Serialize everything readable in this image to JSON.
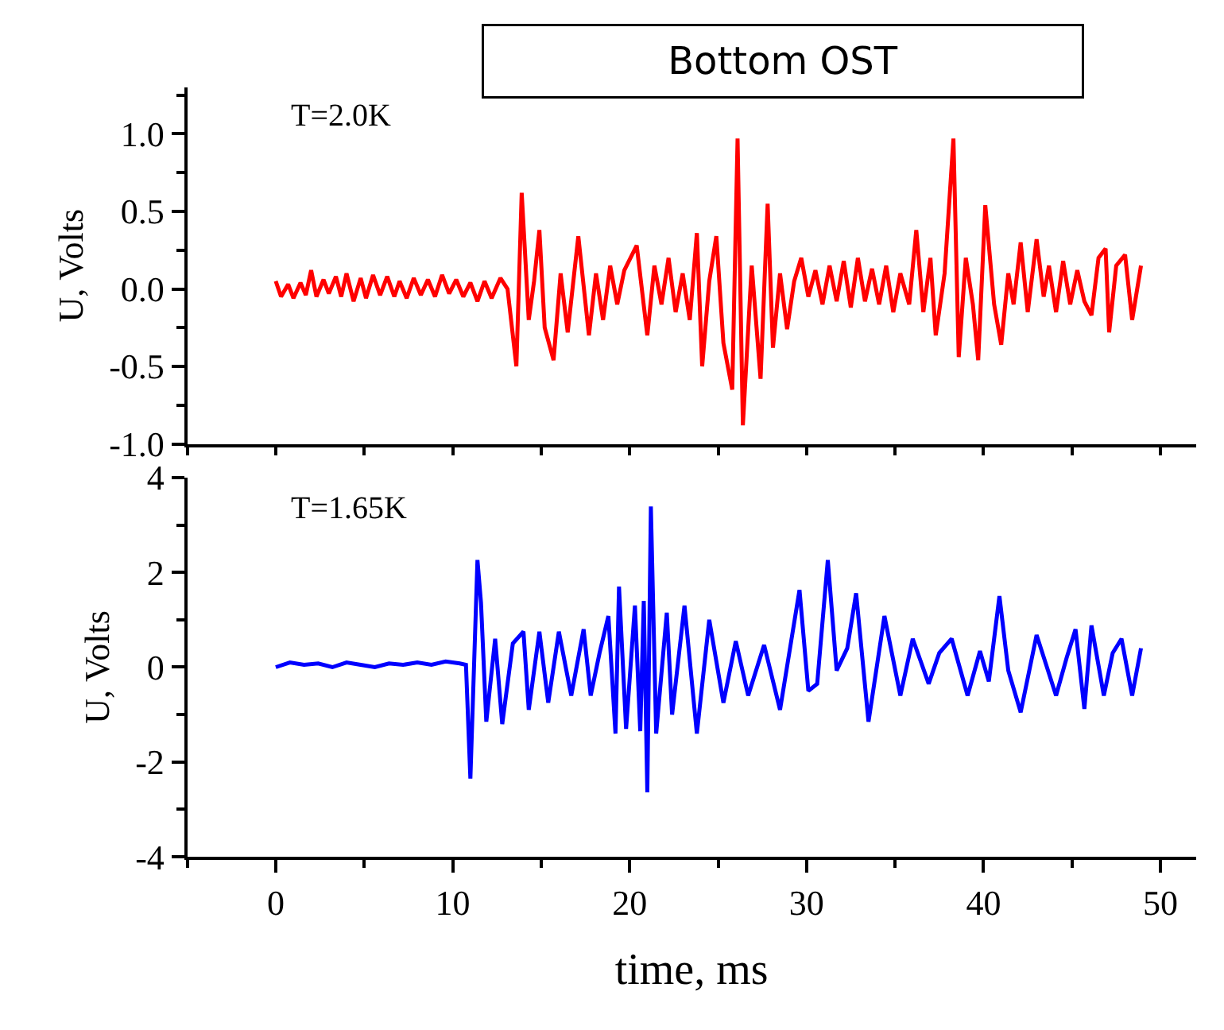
{
  "chart_data": [
    {
      "type": "line",
      "title": "Bottom OST",
      "ylabel": "U, Volts",
      "annotations": [
        "T=2.0K"
      ],
      "xlim": [
        -5,
        52
      ],
      "xticks": [
        {
          "value": 0,
          "label": null
        },
        {
          "value": 10,
          "label": null
        },
        {
          "value": 20,
          "label": null
        },
        {
          "value": 30,
          "label": null
        },
        {
          "value": 40,
          "label": null
        },
        {
          "value": 50,
          "label": null
        }
      ],
      "ylim": [
        -1.0,
        1.3
      ],
      "yticks": [
        {
          "value": -1.0,
          "label": "-1.0"
        },
        {
          "value": -0.5,
          "label": "-0.5"
        },
        {
          "value": 0.0,
          "label": "0.0"
        },
        {
          "value": 0.5,
          "label": "0.5"
        },
        {
          "value": 1.0,
          "label": "1.0"
        }
      ],
      "tick_labels": "y",
      "marker": "none",
      "line_style": "solid",
      "series": [
        {
          "color": "#ff0000",
          "x": [
            0,
            0.3,
            0.7,
            1.0,
            1.4,
            1.7,
            2.0,
            2.3,
            2.7,
            3.0,
            3.4,
            3.7,
            4.0,
            4.4,
            4.8,
            5.1,
            5.5,
            5.9,
            6.3,
            6.7,
            7.0,
            7.4,
            7.8,
            8.2,
            8.6,
            9.0,
            9.4,
            9.8,
            10.2,
            10.6,
            11.0,
            11.4,
            11.8,
            12.2,
            12.7,
            13.1,
            13.6,
            13.9,
            14.3,
            14.6,
            14.9,
            15.2,
            15.7,
            16.1,
            16.5,
            17.1,
            17.7,
            18.1,
            18.5,
            18.9,
            19.3,
            19.7,
            20.4,
            21.0,
            21.4,
            21.8,
            22.2,
            22.6,
            23.0,
            23.4,
            23.8,
            24.1,
            24.5,
            24.9,
            25.3,
            25.8,
            26.1,
            26.4,
            26.9,
            27.4,
            27.8,
            28.1,
            28.5,
            28.9,
            29.3,
            29.7,
            30.1,
            30.5,
            30.9,
            31.3,
            31.7,
            32.1,
            32.5,
            32.9,
            33.3,
            33.7,
            34.1,
            34.5,
            34.9,
            35.3,
            35.8,
            36.2,
            36.6,
            37.0,
            37.3,
            37.8,
            38.3,
            38.6,
            39.0,
            39.4,
            39.7,
            40.1,
            40.6,
            41.0,
            41.4,
            41.7,
            42.1,
            42.5,
            43.0,
            43.4,
            43.7,
            44.1,
            44.5,
            44.9,
            45.3,
            45.7,
            46.1,
            46.5,
            46.9,
            47.1,
            47.5,
            48.0,
            48.4,
            48.9
          ],
          "values": [
            0.05,
            -0.05,
            0.03,
            -0.06,
            0.04,
            -0.04,
            0.12,
            -0.05,
            0.06,
            -0.03,
            0.08,
            -0.05,
            0.1,
            -0.08,
            0.07,
            -0.06,
            0.09,
            -0.04,
            0.08,
            -0.05,
            0.05,
            -0.06,
            0.07,
            -0.04,
            0.06,
            -0.05,
            0.09,
            -0.03,
            0.06,
            -0.05,
            0.04,
            -0.08,
            0.05,
            -0.06,
            0.07,
            0.0,
            -0.5,
            0.62,
            -0.2,
            0.05,
            0.38,
            -0.25,
            -0.46,
            0.1,
            -0.28,
            0.34,
            -0.3,
            0.1,
            -0.2,
            0.15,
            -0.1,
            0.12,
            0.28,
            -0.3,
            0.15,
            -0.1,
            0.2,
            -0.15,
            0.1,
            -0.2,
            0.36,
            -0.5,
            0.05,
            0.34,
            -0.35,
            -0.65,
            0.97,
            -0.88,
            0.15,
            -0.58,
            0.55,
            -0.38,
            0.1,
            -0.26,
            0.05,
            0.2,
            -0.05,
            0.12,
            -0.1,
            0.15,
            -0.08,
            0.18,
            -0.12,
            0.2,
            -0.08,
            0.13,
            -0.1,
            0.15,
            -0.15,
            0.1,
            -0.1,
            0.38,
            -0.15,
            0.2,
            -0.3,
            0.1,
            0.97,
            -0.44,
            0.2,
            -0.1,
            -0.46,
            0.54,
            -0.1,
            -0.36,
            0.1,
            -0.1,
            0.3,
            -0.15,
            0.32,
            -0.05,
            0.15,
            -0.15,
            0.18,
            -0.1,
            0.12,
            -0.08,
            -0.17,
            0.2,
            0.26,
            -0.28,
            0.15,
            0.22,
            -0.2,
            0.15
          ]
        }
      ]
    },
    {
      "type": "line",
      "xlabel": "time, ms",
      "ylabel": "U, Volts",
      "annotations": [
        "T=1.65K"
      ],
      "xlim": [
        -5,
        52
      ],
      "xticks": [
        0,
        10,
        20,
        30,
        40,
        50
      ],
      "ylim": [
        -4,
        4
      ],
      "yticks": [
        -4,
        -2,
        0,
        2,
        4
      ],
      "marker": "none",
      "line_style": "solid",
      "series": [
        {
          "color": "#0000ff",
          "x": [
            0,
            0.8,
            1.6,
            2.4,
            3.2,
            4.0,
            4.8,
            5.6,
            6.4,
            7.2,
            8.0,
            8.8,
            9.6,
            10.4,
            10.75,
            11.0,
            11.4,
            11.6,
            11.9,
            12.4,
            12.8,
            13.4,
            14.0,
            14.3,
            14.9,
            15.4,
            16.0,
            16.7,
            17.4,
            17.8,
            18.3,
            18.8,
            19.2,
            19.4,
            19.8,
            20.3,
            20.6,
            20.8,
            21.0,
            21.2,
            21.5,
            22.1,
            22.4,
            23.1,
            23.8,
            24.5,
            25.3,
            26.0,
            26.7,
            27.6,
            28.5,
            29.6,
            30.1,
            30.6,
            31.2,
            31.7,
            32.3,
            32.8,
            33.5,
            34.4,
            35.3,
            36.0,
            36.9,
            37.5,
            38.2,
            39.1,
            39.8,
            40.3,
            40.9,
            41.4,
            42.1,
            43.0,
            44.1,
            44.7,
            45.2,
            45.7,
            46.1,
            46.8,
            47.3,
            47.8,
            48.4,
            48.9
          ],
          "values": [
            0.0,
            0.1,
            0.05,
            0.08,
            0.0,
            0.1,
            0.05,
            0.0,
            0.08,
            0.05,
            0.1,
            0.05,
            0.12,
            0.08,
            0.05,
            -2.35,
            2.26,
            1.36,
            -1.15,
            0.6,
            -1.2,
            0.5,
            0.75,
            -0.9,
            0.75,
            -0.75,
            0.75,
            -0.6,
            0.8,
            -0.6,
            0.3,
            1.08,
            -1.4,
            1.7,
            -1.3,
            1.3,
            -1.35,
            1.4,
            -2.64,
            3.39,
            -1.4,
            1.15,
            -1.0,
            1.3,
            -1.4,
            1.0,
            -0.75,
            0.55,
            -0.6,
            0.47,
            -0.9,
            1.63,
            -0.5,
            -0.35,
            2.26,
            -0.07,
            0.4,
            1.56,
            -1.15,
            1.08,
            -0.6,
            0.6,
            -0.35,
            0.3,
            0.6,
            -0.6,
            0.34,
            -0.3,
            1.5,
            -0.07,
            -0.95,
            0.68,
            -0.6,
            0.2,
            0.8,
            -0.88,
            0.88,
            -0.6,
            0.3,
            0.6,
            -0.6,
            0.4
          ]
        }
      ]
    }
  ]
}
